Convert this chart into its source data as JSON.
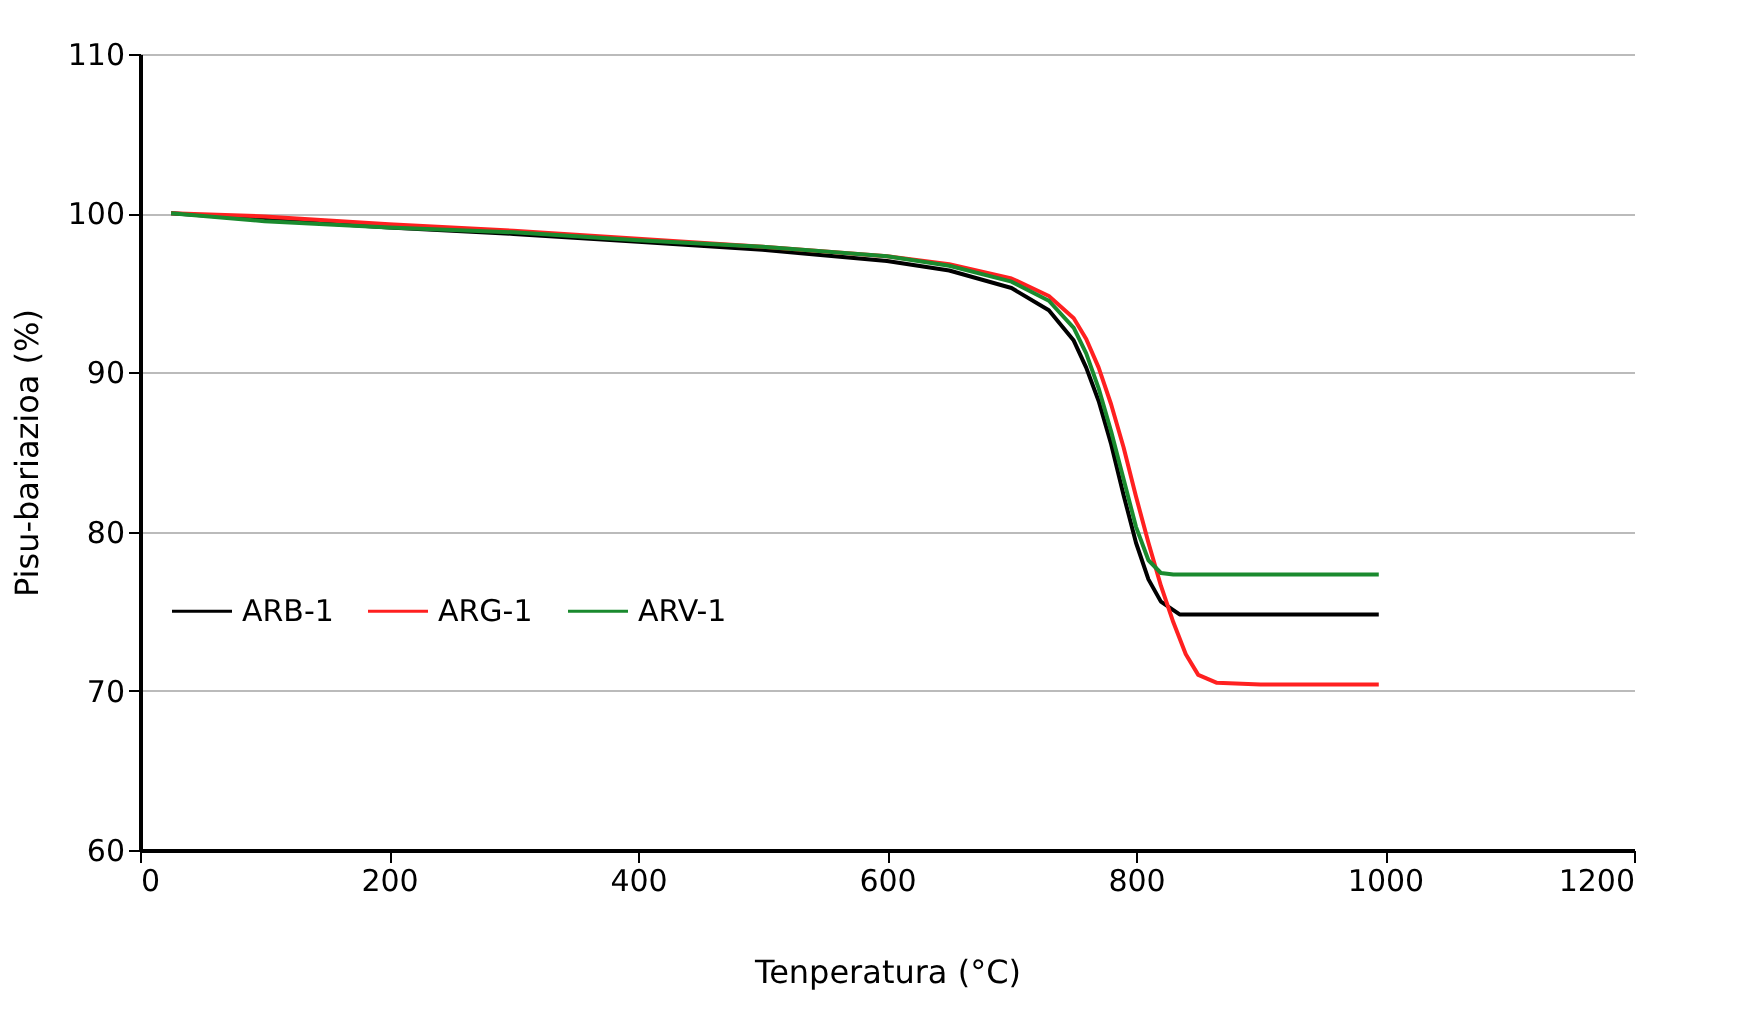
{
  "chart_data": {
    "type": "line",
    "xlabel": "Tenperatura (°C)",
    "ylabel": "Pisu-bariazioa (%)",
    "xlim": [
      0,
      1200
    ],
    "xticks": [
      0,
      200,
      400,
      600,
      800,
      1000,
      1200
    ],
    "ylim": [
      60,
      110
    ],
    "yticks": [
      60,
      70,
      80,
      90,
      100,
      110
    ],
    "grid": "y",
    "legend": "left",
    "line_style": "solid",
    "marker": "none",
    "series": [
      {
        "name": "ARB-1",
        "color": "#000000",
        "x": [
          25,
          100,
          200,
          300,
          400,
          500,
          600,
          650,
          700,
          730,
          750,
          760,
          770,
          780,
          790,
          800,
          810,
          820,
          835,
          900,
          995
        ],
        "values": [
          100,
          99.6,
          99.1,
          98.7,
          98.2,
          97.7,
          97.0,
          96.4,
          95.3,
          93.9,
          92.0,
          90.3,
          88.2,
          85.5,
          82.3,
          79.3,
          77.0,
          75.6,
          74.8,
          74.8,
          74.8
        ]
      },
      {
        "name": "ARG-1",
        "color": "#ff2020",
        "x": [
          25,
          100,
          200,
          300,
          400,
          500,
          600,
          650,
          700,
          730,
          750,
          760,
          770,
          780,
          790,
          800,
          810,
          820,
          830,
          840,
          850,
          865,
          900,
          995
        ],
        "values": [
          100,
          99.8,
          99.3,
          98.9,
          98.4,
          97.9,
          97.3,
          96.8,
          95.9,
          94.8,
          93.4,
          92.1,
          90.3,
          88.0,
          85.3,
          82.2,
          79.3,
          76.6,
          74.3,
          72.3,
          71.0,
          70.5,
          70.4,
          70.4
        ]
      },
      {
        "name": "ARV-1",
        "color": "#1a8a2e",
        "x": [
          25,
          100,
          200,
          300,
          400,
          500,
          600,
          650,
          700,
          730,
          750,
          760,
          770,
          780,
          790,
          800,
          810,
          820,
          830,
          900,
          995
        ],
        "values": [
          100,
          99.5,
          99.1,
          98.8,
          98.3,
          97.9,
          97.3,
          96.7,
          95.7,
          94.5,
          92.8,
          91.2,
          89.0,
          86.3,
          83.3,
          80.3,
          78.2,
          77.4,
          77.3,
          77.3,
          77.3
        ]
      }
    ]
  }
}
